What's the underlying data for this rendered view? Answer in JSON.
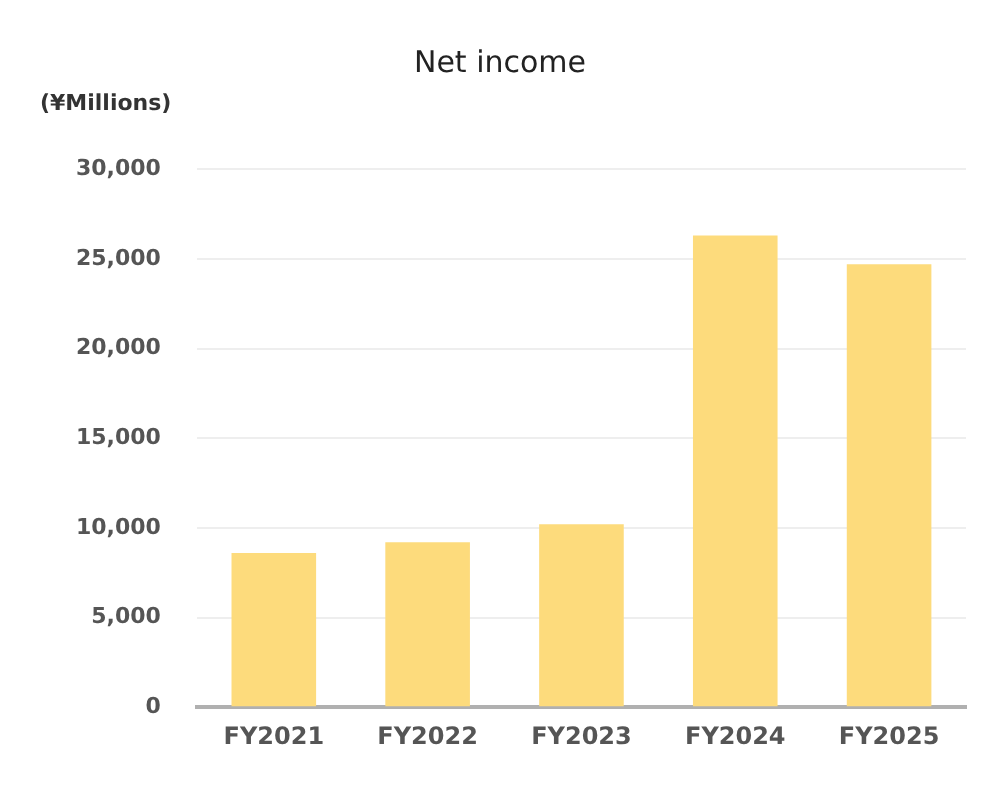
{
  "chart_data": {
    "type": "bar",
    "title": "Net income",
    "ylabel": "(¥Millions)",
    "categories": [
      "FY2021",
      "FY2022",
      "FY2023",
      "FY2024",
      "FY2025"
    ],
    "values": [
      8600,
      9200,
      10200,
      26300,
      24700
    ],
    "color": "#fddb7c",
    "ylim": [
      0,
      30000
    ],
    "yticks": [
      {
        "value": 0,
        "label": "0"
      },
      {
        "value": 5000,
        "label": "5,000"
      },
      {
        "value": 10000,
        "label": "10,000"
      },
      {
        "value": 15000,
        "label": "15,000"
      },
      {
        "value": 20000,
        "label": "20,000"
      },
      {
        "value": 25000,
        "label": "25,000"
      },
      {
        "value": 30000,
        "label": "30,000"
      }
    ],
    "grid": "y",
    "legend": false
  }
}
